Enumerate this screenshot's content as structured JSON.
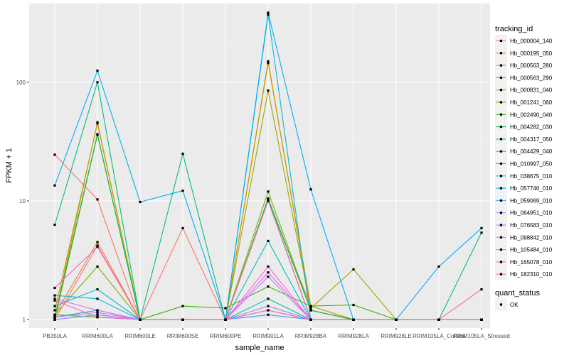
{
  "chart_data": {
    "type": "line",
    "y_scale": "log10",
    "xlabel": "sample_name",
    "ylabel": "FPKM + 1",
    "ylim": [
      0.85,
      460
    ],
    "y_ticks": [
      {
        "value": 1,
        "label": "1"
      },
      {
        "value": 10,
        "label": "10"
      },
      {
        "value": 100,
        "label": "100"
      }
    ],
    "categories": [
      "PB350LA",
      "RRIM600LA",
      "RRIM600LE",
      "RRIM600SE",
      "RRIM600PE",
      "RRIM901LA",
      "RRIM928BA",
      "RRIM928LA",
      "RRIM928LE",
      "RRIM105LA_Control",
      "RRIM105LA_Stressed"
    ],
    "legend_title": "tracking_id",
    "series": [
      {
        "name": "Hb_000004_140",
        "color": "#F8766D",
        "values": [
          24.5,
          10.3,
          1,
          5.9,
          1,
          10,
          1.3,
          1,
          1,
          1,
          1
        ]
      },
      {
        "name": "Hb_000195_050",
        "color": "#EA8331",
        "values": [
          1.1,
          4.5,
          1,
          1,
          1,
          1.2,
          1,
          1,
          1,
          1,
          1
        ]
      },
      {
        "name": "Hb_000563_280",
        "color": "#D89000",
        "values": [
          1.05,
          46,
          1,
          1,
          1,
          150,
          1.2,
          1,
          1,
          1,
          1
        ]
      },
      {
        "name": "Hb_000563_290",
        "color": "#C09B00",
        "values": [
          1.2,
          45,
          1,
          1,
          1,
          145,
          1.3,
          1,
          1,
          1,
          1
        ]
      },
      {
        "name": "Hb_000831_040",
        "color": "#A3A500",
        "values": [
          1.0,
          36,
          1,
          1,
          1,
          85,
          1.25,
          2.65,
          1,
          1,
          1
        ]
      },
      {
        "name": "Hb_001241_060",
        "color": "#7CAE00",
        "values": [
          1.1,
          2.8,
          1,
          1,
          1,
          12,
          1.2,
          1,
          1,
          1,
          1
        ]
      },
      {
        "name": "Hb_002490_040",
        "color": "#39B600",
        "values": [
          1.1,
          1.05,
          1,
          1.3,
          1.25,
          1.9,
          1.3,
          1.33,
          1,
          1,
          1
        ]
      },
      {
        "name": "Hb_004282_030",
        "color": "#00BB4E",
        "values": [
          1.05,
          36.5,
          1,
          1,
          1,
          10.5,
          1.2,
          1,
          1,
          1,
          1
        ]
      },
      {
        "name": "Hb_004317_050",
        "color": "#00BF7D",
        "values": [
          6.3,
          100,
          1,
          25,
          1,
          10.3,
          1,
          1,
          1,
          1,
          5.4
        ]
      },
      {
        "name": "Hb_004429_040",
        "color": "#00C1A3",
        "values": [
          1.05,
          1.2,
          1,
          1,
          1,
          1.5,
          1,
          1,
          1,
          1,
          1
        ]
      },
      {
        "name": "Hb_010997_050",
        "color": "#00BFC4",
        "values": [
          1.3,
          1.8,
          1,
          1,
          1,
          4.6,
          1,
          1,
          1,
          1,
          1
        ]
      },
      {
        "name": "Hb_038675_010",
        "color": "#00BAE0",
        "values": [
          1.6,
          1.5,
          1,
          1,
          1,
          370,
          1,
          1,
          1,
          1,
          1
        ]
      },
      {
        "name": "Hb_057746_010",
        "color": "#00B0F6",
        "values": [
          13.5,
          125,
          9.8,
          12.2,
          1,
          385,
          12.5,
          1,
          1,
          2.8,
          5.9
        ]
      },
      {
        "name": "Hb_059069_010",
        "color": "#35A2FF",
        "values": [
          1.0,
          1.1,
          1,
          1,
          1,
          1.1,
          1,
          1,
          1,
          1,
          1
        ]
      },
      {
        "name": "Hb_064951_010",
        "color": "#9590FF",
        "values": [
          1.0,
          1.1,
          1,
          1,
          1,
          1.3,
          1,
          1,
          1,
          1,
          1
        ]
      },
      {
        "name": "Hb_076583_010",
        "color": "#C77CFF",
        "values": [
          1.05,
          1.15,
          1,
          1,
          1,
          2.3,
          1,
          1,
          1,
          1,
          1
        ]
      },
      {
        "name": "Hb_098842_010",
        "color": "#E76BF3",
        "values": [
          1.5,
          1.2,
          1,
          1,
          1,
          2.5,
          1,
          1,
          1,
          1,
          1
        ]
      },
      {
        "name": "Hb_105484_010",
        "color": "#FA62DB",
        "values": [
          1.85,
          4.1,
          1,
          1,
          1,
          2.8,
          1,
          1,
          1,
          1,
          1
        ]
      },
      {
        "name": "Hb_165078_010",
        "color": "#FF62BC",
        "values": [
          1.45,
          1.05,
          1,
          1,
          1,
          1.2,
          1,
          1,
          1,
          1,
          1.8
        ]
      },
      {
        "name": "Hb_182310_010",
        "color": "#FF6C91",
        "values": [
          1.0,
          4.2,
          1,
          1,
          1,
          10,
          1,
          1,
          1,
          1,
          1
        ]
      }
    ],
    "quant_legend": {
      "title": "quant_status",
      "entries": [
        "OK"
      ]
    },
    "grid": true,
    "legend_position": "right"
  }
}
